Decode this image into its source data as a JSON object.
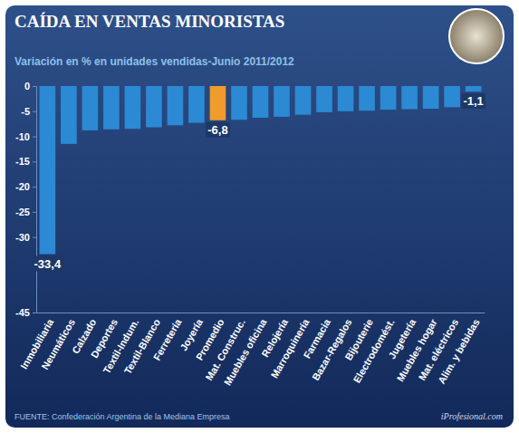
{
  "chart_data": {
    "type": "bar",
    "title": "CAÍDA EN VENTAS MINORISTAS",
    "subtitle": "Variación en % en unidades vendidas-Junio 2011/2012",
    "source": "FUENTE: Confederación Argentina de la Mediana Empresa",
    "credit": "iProfesional.com",
    "categories": [
      "Inmobiliaria",
      "Neumáticos",
      "Calzado",
      "Deportes",
      "Textil-Indum.",
      "Textil-Blanco",
      "Ferretería",
      "Joyería",
      "Promedio",
      "Mat. Construc.",
      "Muebles oficina",
      "Relojería",
      "Marroquinería",
      "Farmacia",
      "Bazar-Regalos",
      "Bijouterie",
      "Electrodomést.",
      "Jugetería",
      "Muebles hogar",
      "Mat. eléctricos",
      "Alim. y bebidas"
    ],
    "values": [
      -33.4,
      -11.5,
      -8.8,
      -8.6,
      -8.5,
      -8.2,
      -7.8,
      -7.3,
      -6.8,
      -6.7,
      -6.3,
      -6.1,
      -5.7,
      -5.2,
      -5.0,
      -4.9,
      -4.7,
      -4.6,
      -4.5,
      -4.2,
      -1.1
    ],
    "value_labels": [
      "-33,4",
      null,
      null,
      null,
      null,
      null,
      null,
      null,
      "-6,8",
      null,
      null,
      null,
      null,
      null,
      null,
      null,
      null,
      null,
      null,
      null,
      "-1,1"
    ],
    "data_labels": true,
    "colors": [
      "#2b8ad3",
      "#2b8ad3",
      "#2b8ad3",
      "#2b8ad3",
      "#2b8ad3",
      "#2b8ad3",
      "#2b8ad3",
      "#2b8ad3",
      "#f29a2e",
      "#2b8ad3",
      "#2b8ad3",
      "#2b8ad3",
      "#2b8ad3",
      "#2b8ad3",
      "#2b8ad3",
      "#2b8ad3",
      "#2b8ad3",
      "#2b8ad3",
      "#2b8ad3",
      "#2b8ad3",
      "#2b8ad3"
    ],
    "ylim": [
      -45,
      0
    ],
    "yticks": [
      0,
      -5,
      -10,
      -15,
      -20,
      -25,
      -30,
      -45
    ],
    "grid": false
  }
}
